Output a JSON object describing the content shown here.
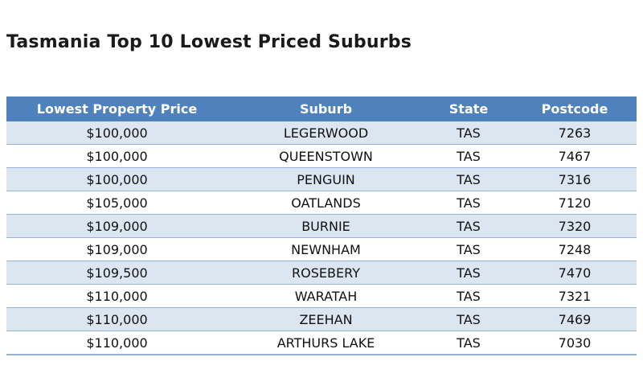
{
  "title": "Tasmania Top 10 Lowest Priced Suburbs",
  "chart_data": {
    "type": "table",
    "title": "Tasmania Top 10 Lowest Priced Suburbs",
    "columns": [
      "Lowest Property Price",
      "Suburb",
      "State",
      "Postcode"
    ],
    "rows": [
      [
        "$100,000",
        "LEGERWOOD",
        "TAS",
        "7263"
      ],
      [
        "$100,000",
        "QUEENSTOWN",
        "TAS",
        "7467"
      ],
      [
        "$100,000",
        "PENGUIN",
        "TAS",
        "7316"
      ],
      [
        "$105,000",
        "OATLANDS",
        "TAS",
        "7120"
      ],
      [
        "$109,000",
        "BURNIE",
        "TAS",
        "7320"
      ],
      [
        "$109,000",
        "NEWNHAM",
        "TAS",
        "7248"
      ],
      [
        "$109,500",
        "ROSEBERY",
        "TAS",
        "7470"
      ],
      [
        "$110,000",
        "WARATAH",
        "TAS",
        "7321"
      ],
      [
        "$110,000",
        "ZEEHAN",
        "TAS",
        "7469"
      ],
      [
        "$110,000",
        "ARTHURS LAKE",
        "TAS",
        "7030"
      ]
    ]
  },
  "colors": {
    "header_bg": "#4f81bd",
    "header_text": "#ffffff",
    "band_row": "#dce6f1",
    "row_border": "#95b3d7"
  }
}
